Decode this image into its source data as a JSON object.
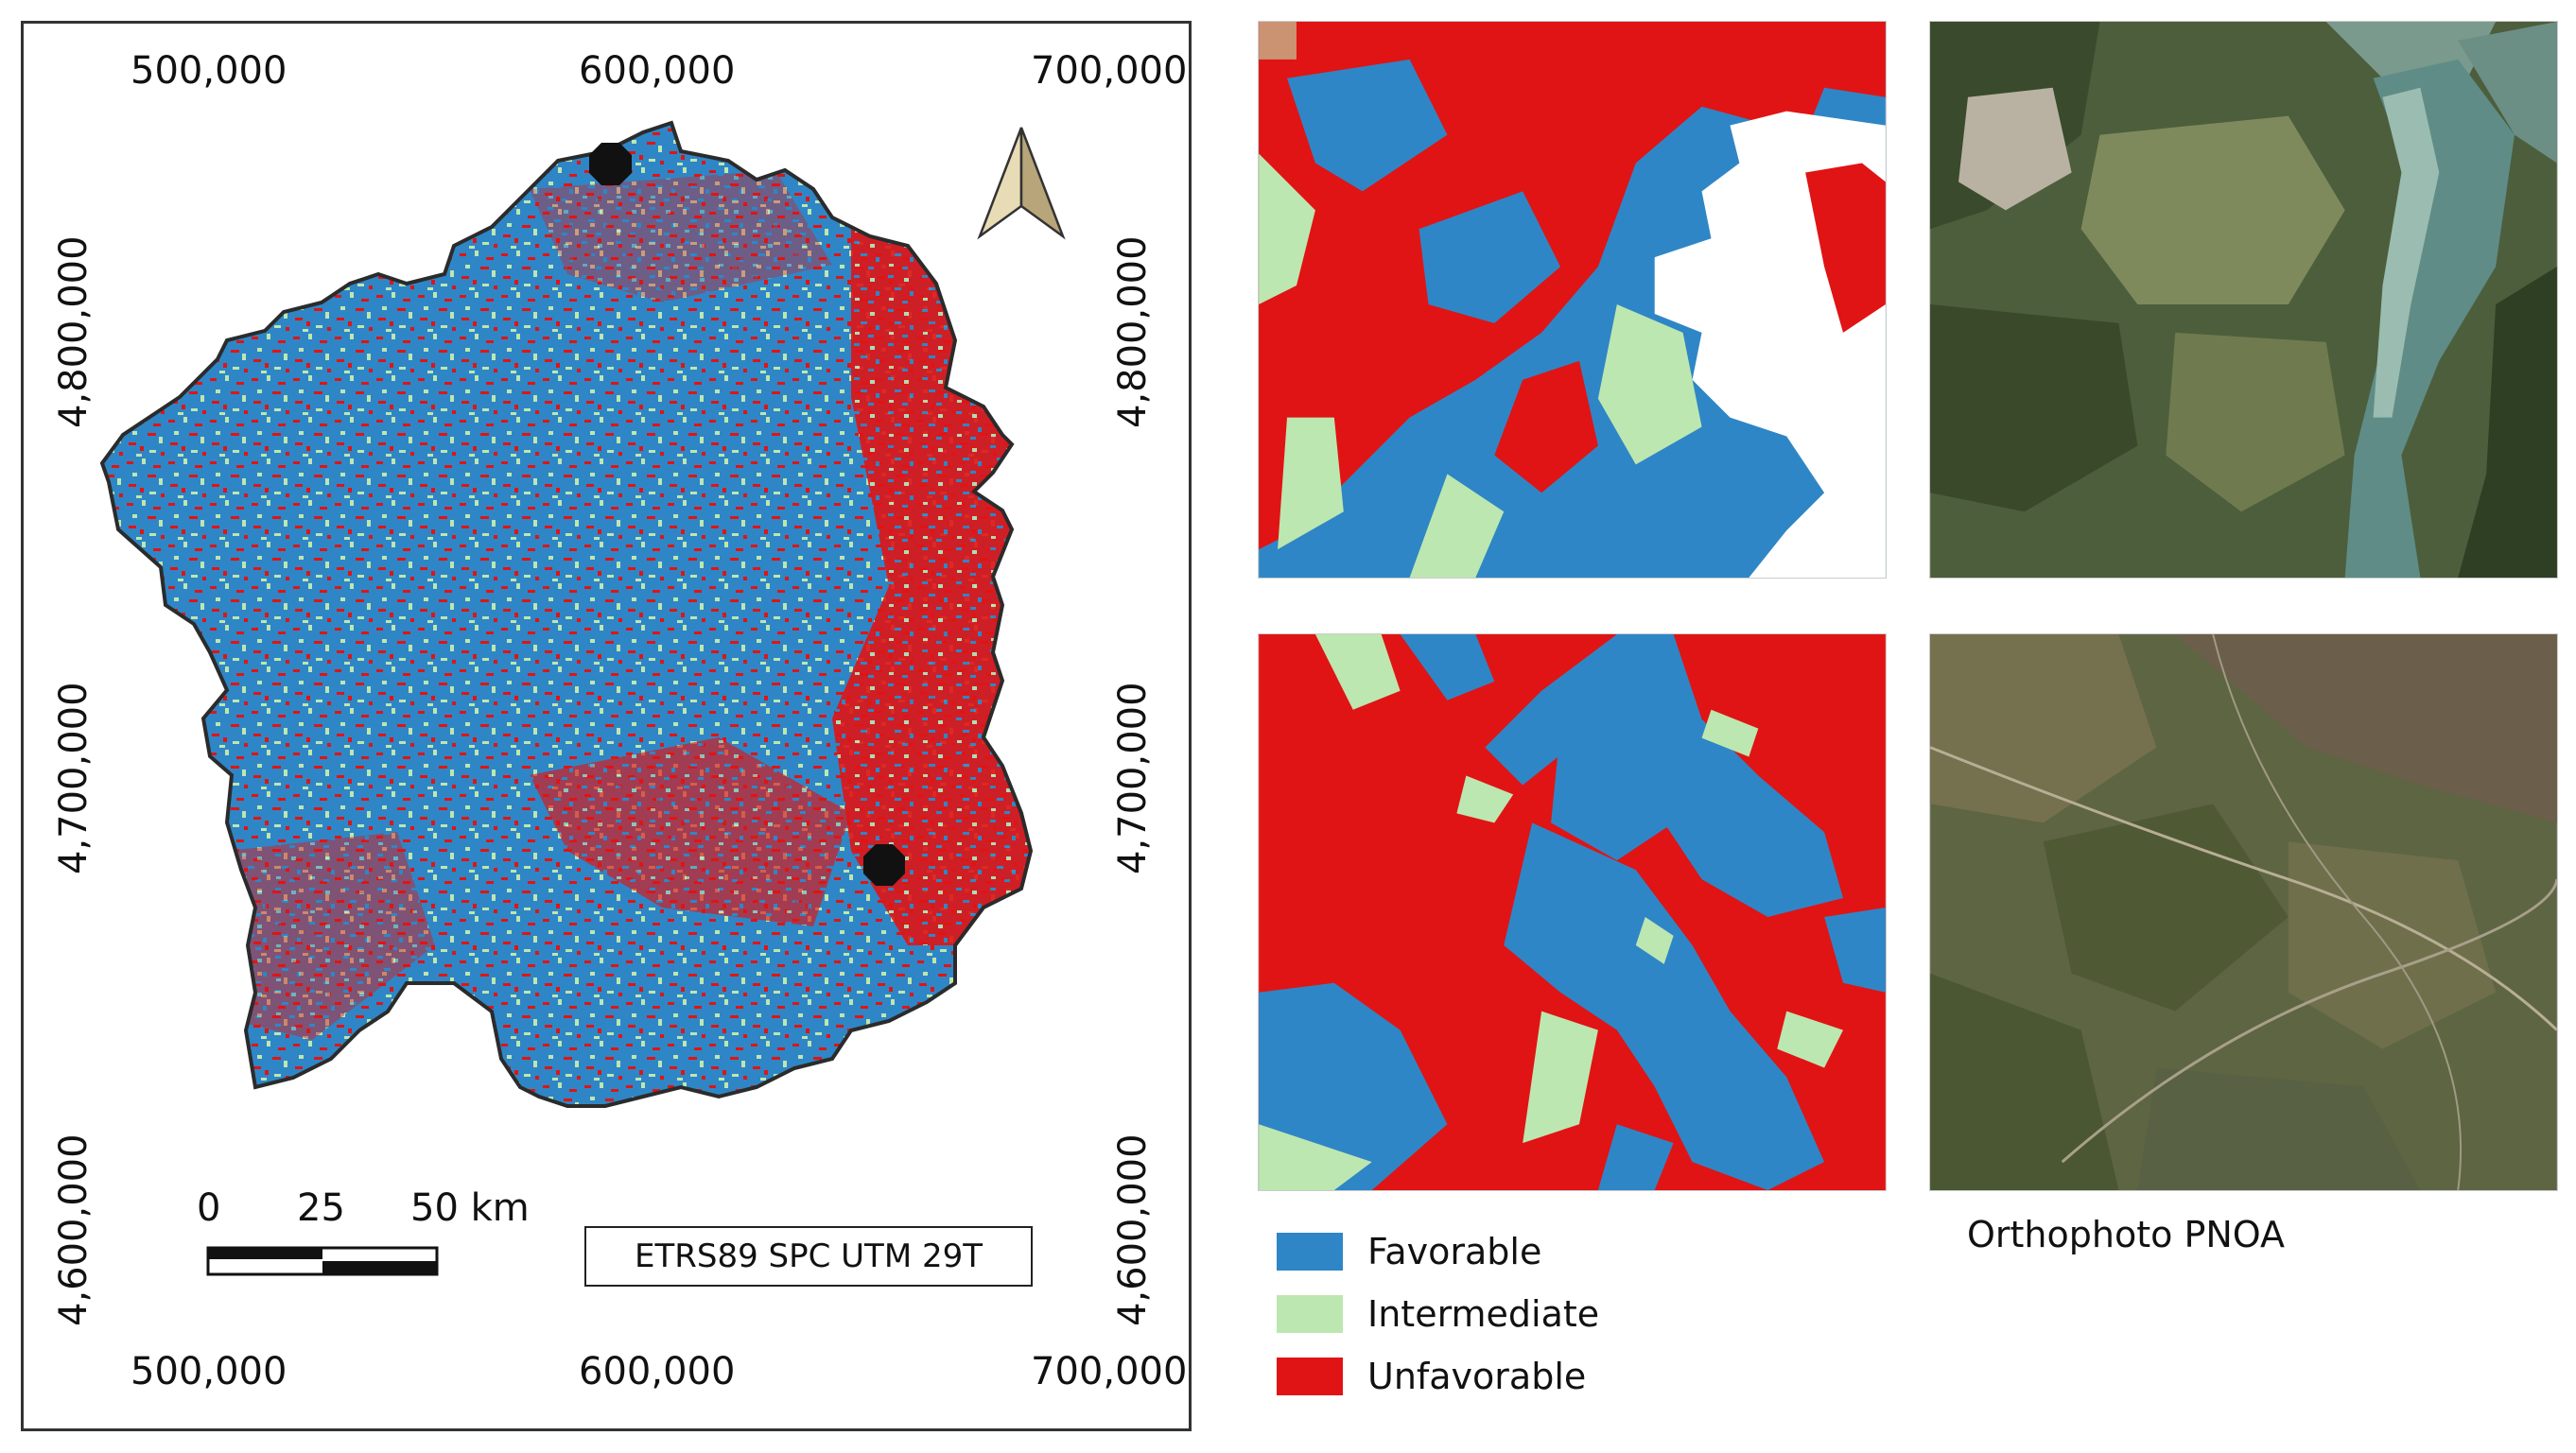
{
  "main_map": {
    "x_ticks_top": [
      "500,000",
      "600,000",
      "700,000"
    ],
    "x_ticks_bottom": [
      "500,000",
      "600,000",
      "700,000"
    ],
    "y_ticks_left": [
      "4,800,000",
      "4,700,000",
      "4,600,000"
    ],
    "y_ticks_right": [
      "4,800,000",
      "4,700,000",
      "4,600,000"
    ],
    "scale_labels": [
      "0",
      "25",
      "50 km"
    ],
    "crs_label": "ETRS89 SPC UTM 29T"
  },
  "legend": [
    {
      "label": "Favorable",
      "color": "#2f86c6"
    },
    {
      "label": "Intermediate",
      "color": "#bde7b0"
    },
    {
      "label": "Unfavorable",
      "color": "#e01414"
    }
  ],
  "ortho_caption": "Orthophoto PNOA",
  "colors": {
    "favorable": "#2f86c6",
    "intermediate": "#bde7b0",
    "unfavorable": "#e01414",
    "outline": "#2b2b2b"
  }
}
